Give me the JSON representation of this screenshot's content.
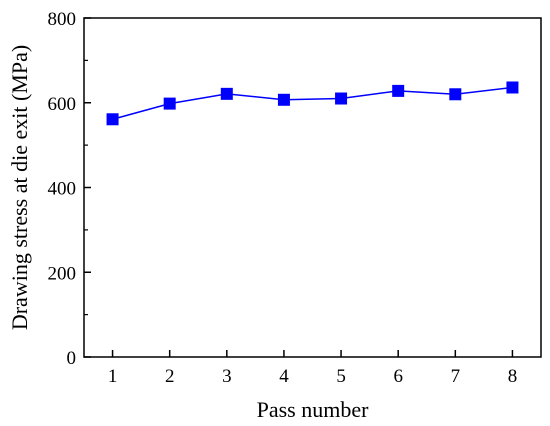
{
  "chart_data": {
    "type": "line",
    "xlabel": "Pass number",
    "ylabel": "Drawing stress at die exit (MPa)",
    "xlim": [
      0.5,
      8.5
    ],
    "ylim": [
      0,
      800
    ],
    "x_ticks": [
      1,
      2,
      3,
      4,
      5,
      6,
      7,
      8
    ],
    "y_ticks": [
      0,
      200,
      400,
      600,
      800
    ],
    "grid": false,
    "legend": "none",
    "series": [
      {
        "color": "#0000ff",
        "marker": "square",
        "x": [
          1,
          2,
          3,
          4,
          5,
          6,
          7,
          8
        ],
        "y": [
          561,
          598,
          621,
          607,
          610,
          628,
          620,
          636
        ]
      }
    ]
  }
}
